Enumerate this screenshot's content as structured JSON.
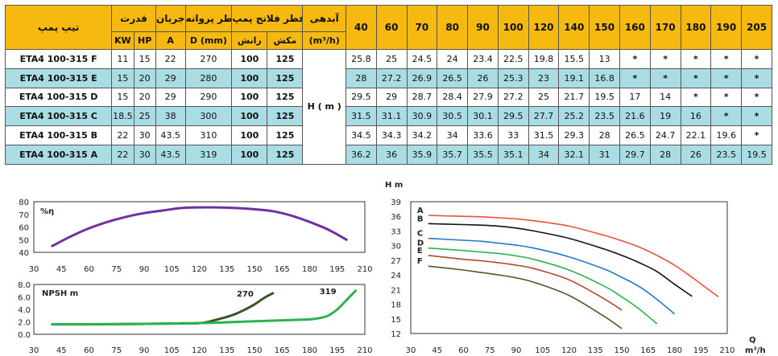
{
  "table": {
    "head": {
      "model": "تیپ پمپ",
      "power": "قدرت",
      "kw": "KW",
      "hp": "HP",
      "current": "جریان",
      "amp": "A",
      "impeller": "قطر پروانه",
      "impeller_unit": "D (mm)",
      "flange": "قطر فلانج پمپ (mm)",
      "discharge": "رانش",
      "suction": "مکش",
      "flow": "آبدهی",
      "flow_unit": "(m³/h)",
      "flows": [
        "40",
        "60",
        "70",
        "80",
        "90",
        "100",
        "120",
        "140",
        "150",
        "160",
        "170",
        "180",
        "190",
        "205"
      ]
    },
    "h_label": "H ( m )",
    "rows": [
      {
        "model": "ETA4 100-315 F",
        "kw": "11",
        "hp": "15",
        "a": "22",
        "d": "270",
        "dis": "100",
        "suc": "125",
        "h": [
          "25.8",
          "25",
          "24.5",
          "24",
          "23.4",
          "22.5",
          "19.8",
          "15.5",
          "13",
          "*",
          "*",
          "*",
          "*",
          "*"
        ]
      },
      {
        "model": "ETA4 100-315 E",
        "kw": "15",
        "hp": "20",
        "a": "29",
        "d": "280",
        "dis": "100",
        "suc": "125",
        "h": [
          "28",
          "27.2",
          "26.9",
          "26.5",
          "26",
          "25.3",
          "23",
          "19.1",
          "16.8",
          "*",
          "*",
          "*",
          "*",
          "*"
        ]
      },
      {
        "model": "ETA4 100-315 D",
        "kw": "15",
        "hp": "20",
        "a": "29",
        "d": "290",
        "dis": "100",
        "suc": "125",
        "h": [
          "29.5",
          "29",
          "28.7",
          "28.4",
          "27.9",
          "27.2",
          "25",
          "21.7",
          "19.5",
          "17",
          "14",
          "*",
          "*",
          "*"
        ]
      },
      {
        "model": "ETA4 100-315 C",
        "kw": "18.5",
        "hp": "25",
        "a": "38",
        "d": "300",
        "dis": "100",
        "suc": "125",
        "h": [
          "31.5",
          "31.1",
          "30.9",
          "30.5",
          "30.1",
          "29.5",
          "27.7",
          "25.2",
          "23.5",
          "21.6",
          "19",
          "16",
          "*",
          "*"
        ]
      },
      {
        "model": "ETA4 100-315 B",
        "kw": "22",
        "hp": "30",
        "a": "43.5",
        "d": "310",
        "dis": "100",
        "suc": "125",
        "h": [
          "34.5",
          "34.3",
          "34.2",
          "34",
          "33.6",
          "33",
          "31.5",
          "29.3",
          "28",
          "26.5",
          "24.7",
          "22.1",
          "19.6",
          "*"
        ]
      },
      {
        "model": "ETA4 100-315 A",
        "kw": "22",
        "hp": "30",
        "a": "43.5",
        "d": "319",
        "dis": "100",
        "suc": "125",
        "h": [
          "36.2",
          "36",
          "35.9",
          "35.7",
          "35.5",
          "35.1",
          "34",
          "32.1",
          "31",
          "29.7",
          "28",
          "26",
          "23.5",
          "19.5"
        ]
      }
    ]
  },
  "chart_data": [
    {
      "type": "line",
      "ylabel": "%η",
      "xlim": [
        30,
        210
      ],
      "ylim": [
        40,
        80
      ],
      "xticks": [
        "30",
        "45",
        "60",
        "75",
        "90",
        "105",
        "120",
        "135",
        "150",
        "165",
        "180",
        "195",
        "210"
      ],
      "yticks": [
        "40",
        "50",
        "60",
        "70",
        "80"
      ],
      "color": "#7030a0",
      "series": [
        {
          "x": [
            40,
            50,
            60,
            70,
            80,
            90,
            100,
            110,
            120,
            130,
            140,
            150,
            160,
            170,
            180,
            190,
            200
          ],
          "y": [
            45,
            52.5,
            59,
            64,
            68,
            71,
            73,
            75,
            75.5,
            75.5,
            75,
            74,
            72.5,
            69,
            64,
            58,
            50
          ]
        }
      ]
    },
    {
      "type": "line",
      "ylabel": "NPSH m",
      "xlim": [
        30,
        210
      ],
      "ylim": [
        0,
        8
      ],
      "xticks": [
        "30",
        "45",
        "60",
        "75",
        "90",
        "105",
        "120",
        "135",
        "150",
        "165",
        "180",
        "195",
        "210"
      ],
      "yticks": [
        "0.0",
        "2.0",
        "4.0",
        "6.0",
        "8.0"
      ],
      "series": [
        {
          "name": "270",
          "color": "#375623",
          "x": [
            40,
            60,
            80,
            100,
            110,
            120,
            125,
            130,
            135,
            140,
            145,
            150,
            155,
            160
          ],
          "y": [
            1.6,
            1.6,
            1.65,
            1.7,
            1.75,
            1.8,
            2.0,
            2.4,
            2.8,
            3.3,
            4.0,
            4.8,
            5.8,
            6.6
          ]
        },
        {
          "name": "319",
          "color": "#2cb24e",
          "x": [
            40,
            80,
            120,
            150,
            170,
            180,
            185,
            190,
            195,
            200,
            205
          ],
          "y": [
            1.6,
            1.65,
            1.8,
            2.1,
            2.3,
            2.4,
            2.6,
            3.0,
            4.0,
            5.5,
            7.0
          ]
        }
      ]
    },
    {
      "type": "line",
      "ylabel": "H m",
      "xlabel": "Q",
      "xunit": "m³/h",
      "xlim": [
        30,
        210
      ],
      "ylim": [
        12,
        39
      ],
      "xticks": [
        "30",
        "45",
        "60",
        "75",
        "90",
        "105",
        "120",
        "135",
        "150",
        "165",
        "180",
        "195",
        "210"
      ],
      "yticks": [
        "12",
        "15",
        "18",
        "21",
        "24",
        "27",
        "30",
        "33",
        "36",
        "39"
      ],
      "series": [
        {
          "name": "A",
          "color": "#e8533a",
          "x": [
            40,
            60,
            70,
            80,
            90,
            100,
            120,
            140,
            150,
            160,
            170,
            180,
            190,
            205
          ],
          "y": [
            36.2,
            36,
            35.9,
            35.7,
            35.5,
            35.1,
            34,
            32.1,
            31,
            29.7,
            28,
            26,
            23.5,
            19.5
          ]
        },
        {
          "name": "B",
          "color": "#111111",
          "x": [
            40,
            60,
            70,
            80,
            90,
            100,
            120,
            140,
            150,
            160,
            170,
            180,
            190
          ],
          "y": [
            34.5,
            34.3,
            34.2,
            34,
            33.6,
            33,
            31.5,
            29.3,
            28,
            26.5,
            24.7,
            22.1,
            19.6
          ]
        },
        {
          "name": "C",
          "color": "#1f78c8",
          "x": [
            40,
            60,
            70,
            80,
            90,
            100,
            120,
            140,
            150,
            160,
            170,
            180
          ],
          "y": [
            31.5,
            31.1,
            30.9,
            30.5,
            30.1,
            29.5,
            27.7,
            25.2,
            23.5,
            21.6,
            19,
            16
          ]
        },
        {
          "name": "D",
          "color": "#2cb24e",
          "x": [
            40,
            60,
            70,
            80,
            90,
            100,
            120,
            140,
            150,
            160,
            170
          ],
          "y": [
            29.5,
            29,
            28.7,
            28.4,
            27.9,
            27.2,
            25,
            21.7,
            19.5,
            17,
            14
          ]
        },
        {
          "name": "E",
          "color": "#b0462a",
          "x": [
            40,
            60,
            70,
            80,
            90,
            100,
            120,
            140,
            150
          ],
          "y": [
            28,
            27.2,
            26.9,
            26.5,
            26,
            25.3,
            23,
            19.1,
            16.8
          ]
        },
        {
          "name": "F",
          "color": "#4a5a2a",
          "x": [
            40,
            60,
            70,
            80,
            90,
            100,
            120,
            140,
            150
          ],
          "y": [
            25.8,
            25,
            24.5,
            24,
            23.4,
            22.5,
            19.8,
            15.5,
            13
          ]
        }
      ]
    }
  ]
}
